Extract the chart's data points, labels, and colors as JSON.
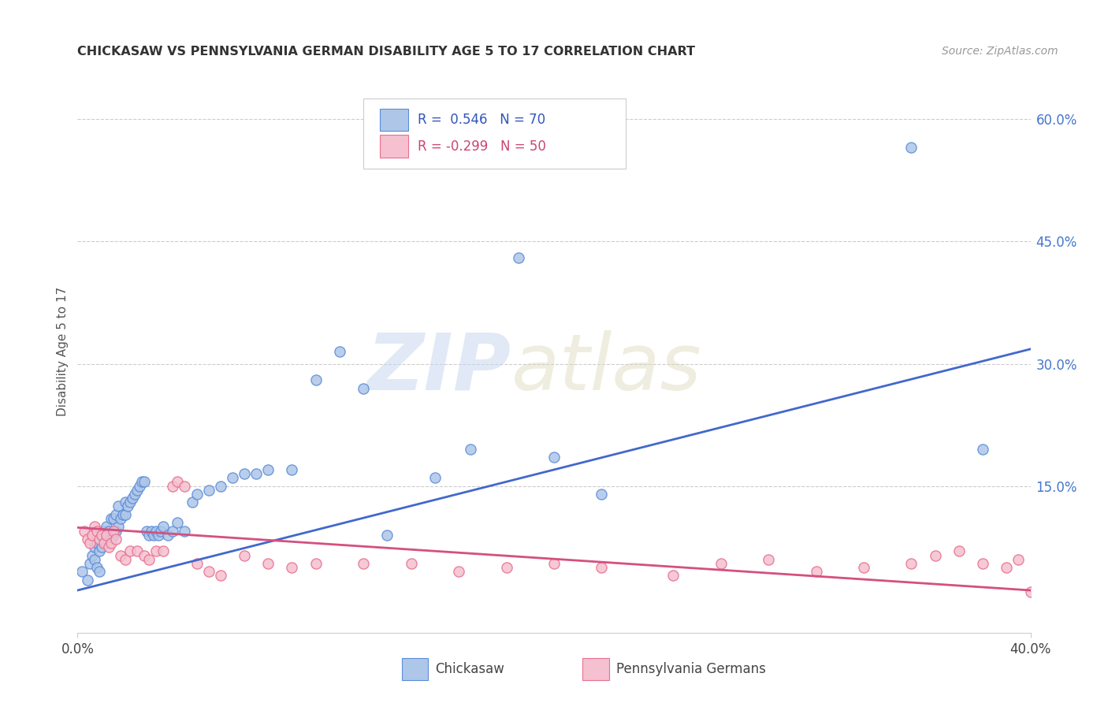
{
  "title": "CHICKASAW VS PENNSYLVANIA GERMAN DISABILITY AGE 5 TO 17 CORRELATION CHART",
  "source": "Source: ZipAtlas.com",
  "ylabel": "Disability Age 5 to 17",
  "xlim": [
    0.0,
    0.4
  ],
  "ylim": [
    -0.03,
    0.66
  ],
  "yticks": [
    0.15,
    0.3,
    0.45,
    0.6
  ],
  "ytick_labels": [
    "15.0%",
    "30.0%",
    "45.0%",
    "60.0%"
  ],
  "xticks": [
    0.0,
    0.4
  ],
  "xtick_labels": [
    "0.0%",
    "40.0%"
  ],
  "chickasaw_color": "#aec6e8",
  "chickasaw_edge_color": "#5b8dd9",
  "pg_color": "#f5c0cf",
  "pg_edge_color": "#e87090",
  "chickasaw_line_color": "#4169cc",
  "pg_line_color": "#d45080",
  "legend_r1_val": "0.546",
  "legend_r1_n": "70",
  "legend_r2_val": "-0.299",
  "legend_r2_n": "50",
  "blue_line_x": [
    0.0,
    0.4
  ],
  "blue_line_y": [
    0.022,
    0.318
  ],
  "pink_line_x": [
    0.0,
    0.4
  ],
  "pink_line_y": [
    0.099,
    0.022
  ],
  "chickasaw_x": [
    0.002,
    0.004,
    0.005,
    0.006,
    0.007,
    0.007,
    0.008,
    0.008,
    0.009,
    0.009,
    0.01,
    0.01,
    0.011,
    0.011,
    0.012,
    0.012,
    0.013,
    0.013,
    0.014,
    0.014,
    0.015,
    0.015,
    0.016,
    0.016,
    0.017,
    0.017,
    0.018,
    0.019,
    0.02,
    0.02,
    0.021,
    0.022,
    0.023,
    0.024,
    0.025,
    0.026,
    0.027,
    0.028,
    0.029,
    0.03,
    0.031,
    0.032,
    0.033,
    0.034,
    0.035,
    0.036,
    0.038,
    0.04,
    0.042,
    0.045,
    0.048,
    0.05,
    0.055,
    0.06,
    0.065,
    0.07,
    0.075,
    0.08,
    0.09,
    0.1,
    0.11,
    0.12,
    0.13,
    0.15,
    0.165,
    0.185,
    0.2,
    0.22,
    0.35,
    0.38
  ],
  "chickasaw_y": [
    0.045,
    0.035,
    0.055,
    0.065,
    0.06,
    0.075,
    0.05,
    0.08,
    0.045,
    0.07,
    0.075,
    0.09,
    0.085,
    0.095,
    0.08,
    0.1,
    0.085,
    0.095,
    0.085,
    0.11,
    0.09,
    0.11,
    0.095,
    0.115,
    0.1,
    0.125,
    0.11,
    0.115,
    0.115,
    0.13,
    0.125,
    0.13,
    0.135,
    0.14,
    0.145,
    0.15,
    0.155,
    0.155,
    0.095,
    0.09,
    0.095,
    0.09,
    0.095,
    0.09,
    0.095,
    0.1,
    0.09,
    0.095,
    0.105,
    0.095,
    0.13,
    0.14,
    0.145,
    0.15,
    0.16,
    0.165,
    0.165,
    0.17,
    0.17,
    0.28,
    0.315,
    0.27,
    0.09,
    0.16,
    0.195,
    0.43,
    0.185,
    0.14,
    0.565,
    0.195
  ],
  "pg_x": [
    0.003,
    0.004,
    0.005,
    0.006,
    0.007,
    0.008,
    0.009,
    0.01,
    0.011,
    0.012,
    0.013,
    0.014,
    0.015,
    0.016,
    0.018,
    0.02,
    0.022,
    0.025,
    0.028,
    0.03,
    0.033,
    0.036,
    0.04,
    0.042,
    0.045,
    0.05,
    0.055,
    0.06,
    0.07,
    0.08,
    0.09,
    0.1,
    0.12,
    0.14,
    0.16,
    0.18,
    0.2,
    0.22,
    0.25,
    0.27,
    0.29,
    0.31,
    0.33,
    0.35,
    0.36,
    0.37,
    0.38,
    0.39,
    0.395,
    0.4
  ],
  "pg_y": [
    0.095,
    0.085,
    0.08,
    0.09,
    0.1,
    0.095,
    0.085,
    0.09,
    0.08,
    0.09,
    0.075,
    0.08,
    0.095,
    0.085,
    0.065,
    0.06,
    0.07,
    0.07,
    0.065,
    0.06,
    0.07,
    0.07,
    0.15,
    0.155,
    0.15,
    0.055,
    0.045,
    0.04,
    0.065,
    0.055,
    0.05,
    0.055,
    0.055,
    0.055,
    0.045,
    0.05,
    0.055,
    0.05,
    0.04,
    0.055,
    0.06,
    0.045,
    0.05,
    0.055,
    0.065,
    0.07,
    0.055,
    0.05,
    0.06,
    0.02
  ]
}
